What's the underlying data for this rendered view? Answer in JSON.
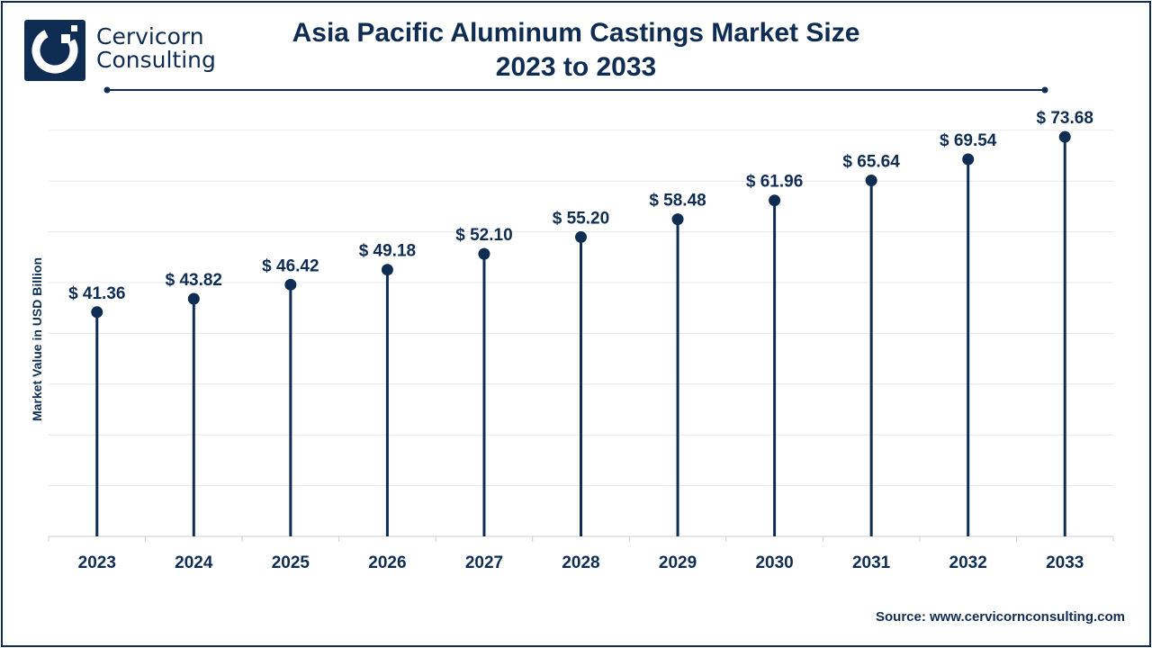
{
  "header": {
    "logo_line1": "Cervicorn",
    "logo_line2": "Consulting",
    "title_line1": "Asia Pacific Aluminum Castings Market Size",
    "title_line2": "2023 to 2033"
  },
  "colors": {
    "primary": "#0f2d52",
    "grid": "#e5e8ec"
  },
  "chart_data": {
    "type": "lollipop",
    "categories": [
      "2023",
      "2024",
      "2025",
      "2026",
      "2027",
      "2028",
      "2029",
      "2030",
      "2031",
      "2032",
      "2033"
    ],
    "series": [
      {
        "values": [
          41.36,
          43.82,
          46.42,
          49.18,
          52.1,
          55.2,
          58.48,
          61.96,
          65.64,
          69.54,
          73.68
        ]
      }
    ],
    "data_labels": [
      "$ 41.36",
      "$ 43.82",
      "$ 46.42",
      "$ 49.18",
      "$ 52.10",
      "$ 55.20",
      "$ 58.48",
      "$ 61.96",
      "$ 65.64",
      "$ 69.54",
      "$ 73.68"
    ],
    "ylabel": "Market Value in USD Billion",
    "xlabel": "",
    "ylim": [
      0,
      80
    ],
    "grid": true,
    "legend": "none"
  },
  "footer": {
    "source": "Source: www.cervicornconsulting.com"
  }
}
